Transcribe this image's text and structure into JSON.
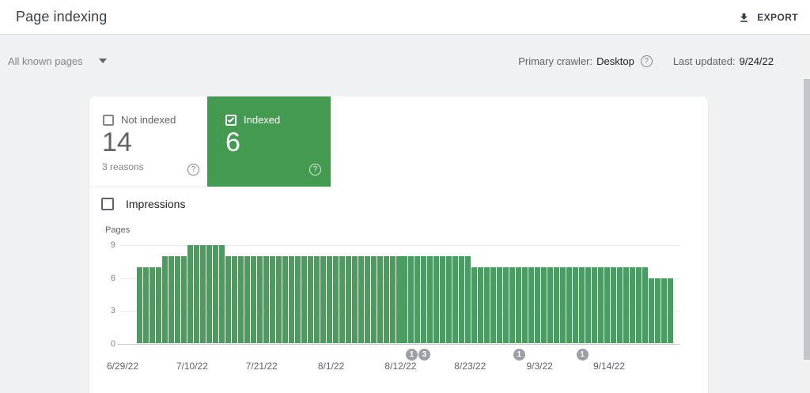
{
  "header": {
    "title": "Page indexing",
    "export_label": "EXPORT"
  },
  "toolbar": {
    "filter_label": "All known pages",
    "primary_crawler_label": "Primary crawler:",
    "primary_crawler_value": "Desktop",
    "last_updated_label": "Last updated:",
    "last_updated_value": "9/24/22"
  },
  "icons": {
    "help_glyph": "?"
  },
  "cards": {
    "not_indexed": {
      "label": "Not indexed",
      "count": "14",
      "sub": "3 reasons",
      "checked": false
    },
    "indexed": {
      "label": "Indexed",
      "count": "6",
      "checked": true
    }
  },
  "impressions": {
    "label": "Impressions",
    "checked": false
  },
  "chart_data": {
    "type": "bar",
    "title": "",
    "ylabel": "Pages",
    "ylim": [
      0,
      9
    ],
    "yticks": [
      9,
      6,
      3,
      0
    ],
    "grid": true,
    "bar_color": "#4a9d5f",
    "xtick_labels": [
      "6/29/22",
      "7/10/22",
      "7/21/22",
      "8/1/22",
      "8/12/22",
      "8/23/22",
      "9/3/22",
      "9/14/22"
    ],
    "values": [
      7,
      7,
      7,
      7,
      8,
      8,
      8,
      8,
      9,
      9,
      9,
      9,
      9,
      9,
      8,
      8,
      8,
      8,
      8,
      8,
      8,
      8,
      8,
      8,
      8,
      8,
      8,
      8,
      8,
      8,
      8,
      8,
      8,
      8,
      8,
      8,
      8,
      8,
      8,
      8,
      8,
      8,
      8,
      8,
      8,
      8,
      8,
      8,
      8,
      8,
      8,
      8,
      8,
      7,
      7,
      7,
      7,
      7,
      7,
      7,
      7,
      7,
      7,
      7,
      7,
      7,
      7,
      7,
      7,
      7,
      7,
      7,
      7,
      7,
      7,
      7,
      7,
      7,
      7,
      7,
      7,
      6,
      6,
      6,
      6
    ],
    "markers": [
      {
        "bar_index": 43,
        "label": "1"
      },
      {
        "bar_index": 45,
        "label": "3"
      },
      {
        "bar_index": 60,
        "label": "1"
      },
      {
        "bar_index": 70,
        "label": "1"
      }
    ]
  },
  "colors": {
    "indexed_card_green": "#459a52",
    "bar_green": "#4a9d5f",
    "marker_gray": "#9aa0a6",
    "background_gray": "#eff1f2"
  }
}
